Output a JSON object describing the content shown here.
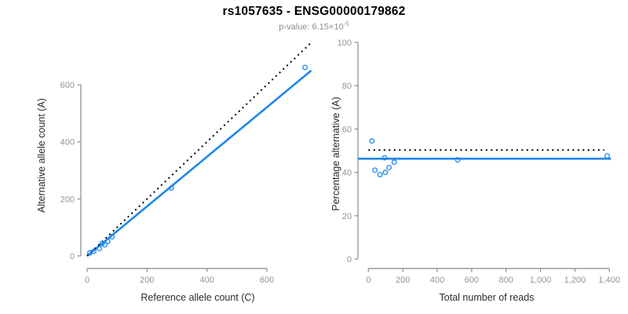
{
  "header": {
    "title": "rs1057635 - ENSG00000179862",
    "subtitle_prefix": "p-value: 6.15×10",
    "subtitle_exponent": "-5"
  },
  "colors": {
    "accent_blue": "#1E86EE",
    "line_black": "#000000",
    "axis_gray": "#8A8A8A",
    "tick_label_gray": "#949494",
    "axis_title_dark": "#2B2B2B",
    "title_black": "#000000",
    "subtitle_gray": "#8C8C8C"
  },
  "chart_data": [
    {
      "type": "scatter",
      "title": "",
      "xlabel": "Reference allele count (C)",
      "ylabel": "Alternative allele count (A)",
      "xlim": [
        0,
        748
      ],
      "ylim": [
        0,
        748
      ],
      "grid": false,
      "xticks": [
        0,
        200,
        400,
        600
      ],
      "xtick_labels": [
        "0",
        "200",
        "400",
        "600"
      ],
      "yticks": [
        0,
        200,
        400,
        600
      ],
      "ytick_labels": [
        "0",
        "200",
        "400",
        "600"
      ],
      "points": [
        [
          9,
          11
        ],
        [
          22,
          16
        ],
        [
          41,
          26
        ],
        [
          50,
          44
        ],
        [
          59,
          39
        ],
        [
          69,
          51
        ],
        [
          83,
          67
        ],
        [
          281,
          238
        ],
        [
          727,
          661
        ]
      ],
      "lines": [
        {
          "name": "fit-line",
          "style": "solid",
          "color": "blue",
          "from": [
            0,
            0
          ],
          "to": [
            748,
            650
          ]
        },
        {
          "name": "identity-line",
          "style": "dotted",
          "color": "black",
          "from": [
            0,
            0
          ],
          "to": [
            745,
            745
          ]
        }
      ]
    },
    {
      "type": "scatter",
      "title": "",
      "xlabel": "Total number of reads",
      "ylabel": "Percentage alternative (A)",
      "xlim": [
        0,
        1410
      ],
      "ylim": [
        0,
        100
      ],
      "grid": false,
      "xticks": [
        0,
        200,
        400,
        600,
        800,
        1000,
        1200,
        1400
      ],
      "xtick_labels": [
        "0",
        "200",
        "400",
        "600",
        "800",
        "1,000",
        "1,200",
        "1,400"
      ],
      "yticks": [
        0,
        20,
        40,
        60,
        80,
        100
      ],
      "ytick_labels": [
        "0",
        "20",
        "40",
        "60",
        "80",
        "100"
      ],
      "points": [
        [
          20,
          54.5
        ],
        [
          38,
          41
        ],
        [
          67,
          39
        ],
        [
          94,
          46.7
        ],
        [
          98,
          40
        ],
        [
          120,
          42.3
        ],
        [
          150,
          44.7
        ],
        [
          519,
          45.8
        ],
        [
          1388,
          47.6
        ]
      ],
      "lines": [
        {
          "name": "mean-percentage-line",
          "style": "solid",
          "color": "blue",
          "from": [
            -60,
            46.3
          ],
          "to": [
            1410,
            46.3
          ]
        },
        {
          "name": "fifty-percent-line",
          "style": "dotted",
          "color": "black",
          "from": [
            0,
            50.3
          ],
          "to": [
            1370,
            50.3
          ]
        }
      ]
    }
  ]
}
